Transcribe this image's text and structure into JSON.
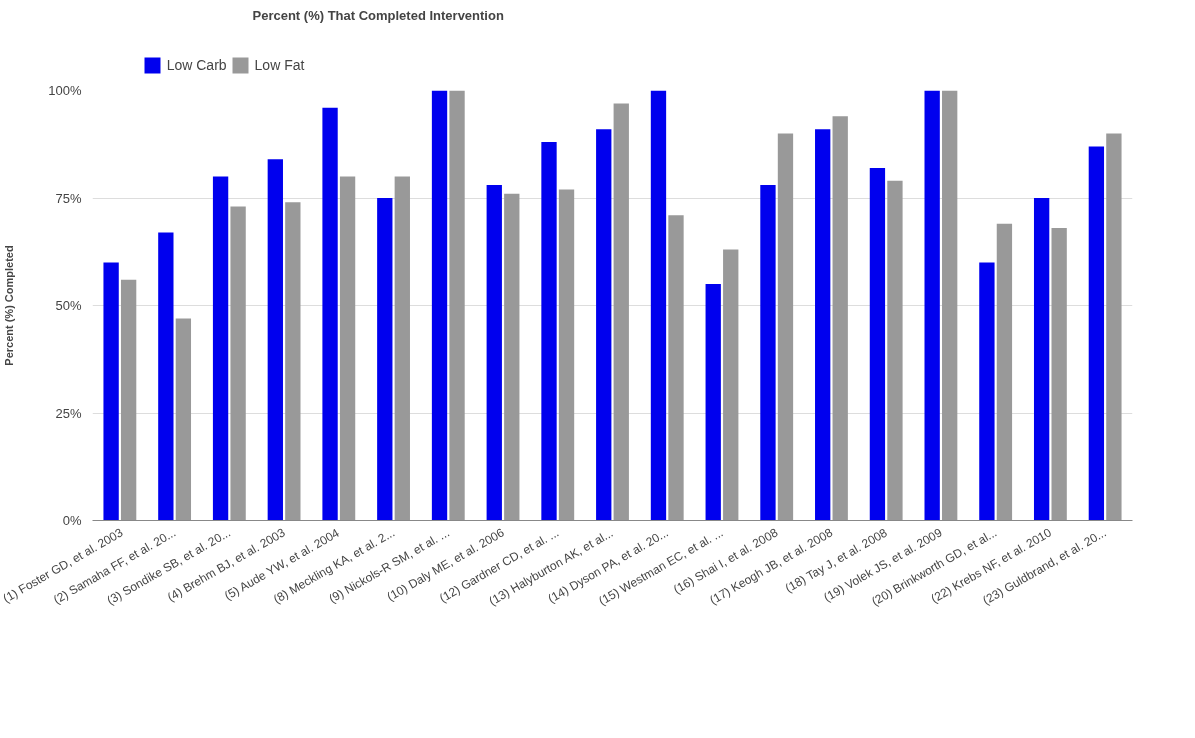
{
  "chart_data": {
    "type": "bar",
    "title": "Percent (%) That Completed Intervention",
    "ylabel": "Percent (%) Completed",
    "categories": [
      "(1) Foster GD, et al. 2003",
      "(2) Samaha FF, et al. 20...",
      "(3) Sondike SB, et al. 20...",
      "(4) Brehm BJ, et al. 2003",
      "(5) Aude YW, et al. 2004",
      "(8) Meckling KA, et al. 2...",
      "(9) Nickols-R SM, et al. ...",
      "(10) Daly ME, et al. 2006",
      "(12) Gardner CD, et al. ...",
      "(13) Halyburton AK, et al...",
      "(14) Dyson PA, et al. 20...",
      "(15) Westman EC, et al. ...",
      "(16) Shai I, et al. 2008",
      "(17) Keogh JB, et al. 2008",
      "(18) Tay J, et al. 2008",
      "(19) Volek JS, et al. 2009",
      "(20) Brinkworth GD, et al...",
      "(22) Krebs NF, et al. 2010",
      "(23) Guldbrand, et al. 20..."
    ],
    "series": [
      {
        "name": "Low Carb",
        "color": "#0000ee",
        "values": [
          60,
          67,
          80,
          84,
          96,
          75,
          100,
          78,
          88,
          91,
          100,
          55,
          78,
          91,
          82,
          100,
          60,
          75,
          87
        ]
      },
      {
        "name": "Low Fat",
        "color": "#999999",
        "values": [
          56,
          47,
          73,
          74,
          80,
          80,
          100,
          76,
          77,
          97,
          71,
          63,
          90,
          94,
          79,
          100,
          69,
          68,
          90
        ]
      }
    ],
    "ylim": [
      0,
      100
    ],
    "yticks": [
      {
        "value": 0,
        "label": "0%"
      },
      {
        "value": 25,
        "label": "25%"
      },
      {
        "value": 50,
        "label": "50%"
      },
      {
        "value": 75,
        "label": "75%"
      },
      {
        "value": 100,
        "label": "100%"
      }
    ],
    "grid": "y",
    "legend": "top left"
  }
}
